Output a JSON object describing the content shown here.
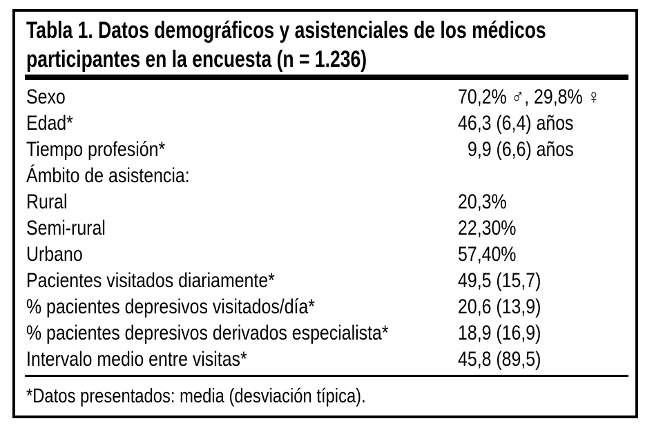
{
  "table": {
    "title": {
      "line1": "Tabla 1. Datos demográficos y asistenciales de los médicos",
      "line2": "participantes en la encuesta (n = 1.236)"
    },
    "rows": [
      {
        "label": "Sexo",
        "value": "70,2% ♂, 29,8% ♀"
      },
      {
        "label": "Edad*",
        "value": "46,3 (6,4) años"
      },
      {
        "label": "Tiempo profesión*",
        "value": "9,9 (6,6) años",
        "indent": true
      },
      {
        "label": "Ámbito de asistencia:",
        "value": ""
      },
      {
        "label": "Rural",
        "value": "20,3%"
      },
      {
        "label": "Semi-rural",
        "value": "22,30%"
      },
      {
        "label": "Urbano",
        "value": "57,40%"
      },
      {
        "label": "Pacientes visitados diariamente*",
        "value": "49,5 (15,7)"
      },
      {
        "label": "% pacientes depresivos visitados/día*",
        "value": "20,6 (13,9)"
      },
      {
        "label": "% pacientes depresivos derivados especialista*",
        "value": "18,9 (16,9)"
      },
      {
        "label": "Intervalo medio entre visitas*",
        "value": "45,8 (89,5)"
      }
    ],
    "footnote": "*Datos presentados: media (desviación típica).",
    "colors": {
      "text": "#000000",
      "background": "#ffffff",
      "rule": "#000000"
    }
  }
}
